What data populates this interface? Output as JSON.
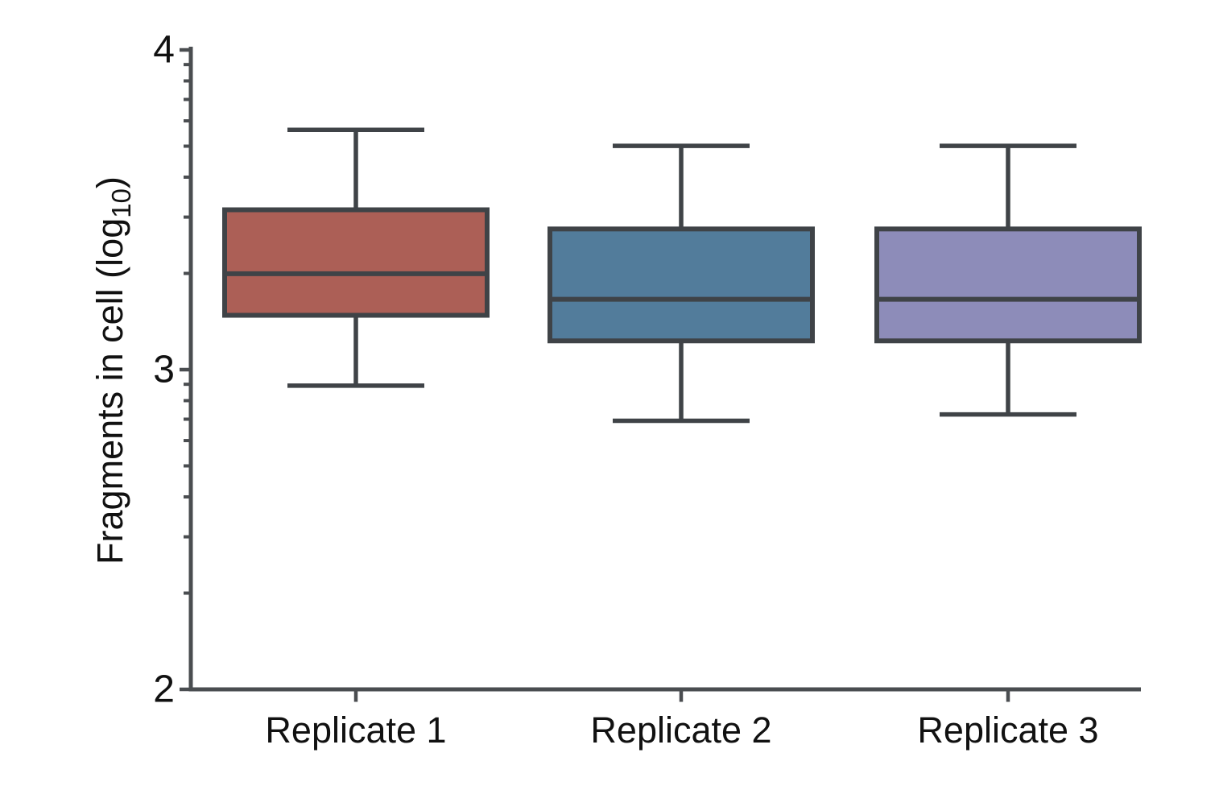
{
  "figure": {
    "background": "#ffffff"
  },
  "chart_data": {
    "type": "box",
    "title": "",
    "xlabel": "",
    "ylabel": "Fragments in cell (log10)",
    "ylabel_parts": {
      "main": "Fragments in cell (log",
      "sub": "10",
      "close": ")"
    },
    "y_scale": "log10-exponent",
    "ylim": [
      2,
      4
    ],
    "y_major_ticks": [
      4,
      3,
      2
    ],
    "y_minor_tick_mantissas": [
      2,
      3,
      4,
      5,
      6,
      7,
      8,
      9
    ],
    "grid": false,
    "legend": "none",
    "categories": [
      "Replicate 1",
      "Replicate 2",
      "Replicate 3"
    ],
    "series": [
      {
        "name": "Replicate 1",
        "whisker_low": 2.95,
        "q1": 3.17,
        "median": 3.3,
        "q3": 3.5,
        "whisker_high": 3.75,
        "fill": "#AC5F56"
      },
      {
        "name": "Replicate 2",
        "whisker_low": 2.84,
        "q1": 3.09,
        "median": 3.22,
        "q3": 3.44,
        "whisker_high": 3.7,
        "fill": "#527C9B"
      },
      {
        "name": "Replicate 3",
        "whisker_low": 2.86,
        "q1": 3.09,
        "median": 3.22,
        "q3": 3.44,
        "whisker_high": 3.7,
        "fill": "#8D8CB9"
      }
    ],
    "colors": {
      "box_stroke": "#3F4347",
      "axis": "#4A4D50",
      "text": "#111111"
    }
  }
}
